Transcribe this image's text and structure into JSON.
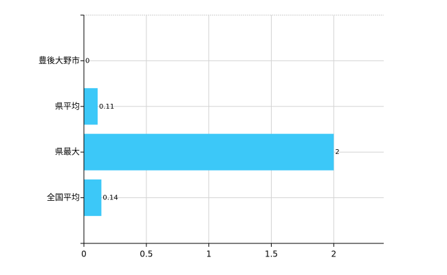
{
  "chart_data": {
    "type": "hbar",
    "categories": [
      "豊後大野市",
      "県平均",
      "県最大",
      "全国平均"
    ],
    "values": [
      0,
      0.11,
      2,
      0.14
    ],
    "color": "#3cc8f8",
    "xlim": [
      0,
      2.4
    ],
    "xticks": [
      0,
      0.5,
      1,
      1.5,
      2
    ],
    "grid": true
  }
}
